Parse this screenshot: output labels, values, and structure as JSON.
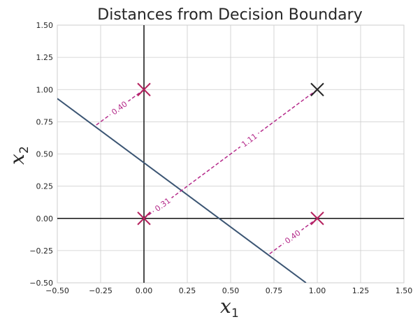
{
  "chart_data": {
    "type": "scatter",
    "title": "Distances from Decision Boundary",
    "xlabel": {
      "base": "x",
      "sub": "1"
    },
    "ylabel": {
      "base": "x",
      "sub": "2"
    },
    "xlim": [
      -0.5,
      1.5
    ],
    "ylim": [
      -0.5,
      1.5
    ],
    "xticks": [
      "−0.50",
      "−0.25",
      "0.00",
      "0.25",
      "0.50",
      "0.75",
      "1.00",
      "1.25",
      "1.50"
    ],
    "yticks": [
      "−0.50",
      "−0.25",
      "0.00",
      "0.25",
      "0.50",
      "0.75",
      "1.00",
      "1.25",
      "1.50"
    ],
    "xtick_values": [
      -0.5,
      -0.25,
      0,
      0.25,
      0.5,
      0.75,
      1.0,
      1.25,
      1.5
    ],
    "ytick_values": [
      -0.5,
      -0.25,
      0,
      0.25,
      0.5,
      0.75,
      1.0,
      1.25,
      1.5
    ],
    "grid": true,
    "boundary": {
      "points": [
        [
          -0.5,
          0.93
        ],
        [
          0.935,
          -0.5
        ]
      ],
      "color": "#3b5573"
    },
    "points": [
      {
        "x": 0,
        "y": 0,
        "color": "#b5225e"
      },
      {
        "x": 0,
        "y": 1,
        "color": "#b5225e"
      },
      {
        "x": 1,
        "y": 0,
        "color": "#b5225e"
      },
      {
        "x": 1,
        "y": 1,
        "color": "#262626"
      }
    ],
    "distances": [
      {
        "from": [
          0,
          1
        ],
        "to": [
          -0.285,
          0.715
        ],
        "label": "0.40",
        "color": "#b52a8a"
      },
      {
        "from": [
          0,
          0
        ],
        "to": [
          0.215,
          0.215
        ],
        "label": "0.31",
        "color": "#b52a8a"
      },
      {
        "from": [
          1,
          1
        ],
        "to": [
          0.215,
          0.215
        ],
        "label": "1.11",
        "color": "#b52a8a"
      },
      {
        "from": [
          1,
          0
        ],
        "to": [
          0.715,
          -0.285
        ],
        "label": "0.40",
        "color": "#b52a8a"
      }
    ]
  }
}
